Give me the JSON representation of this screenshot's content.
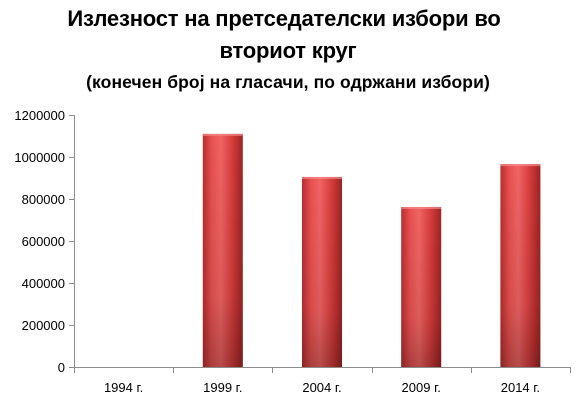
{
  "title_line1": "Излезност на претседателски избори во",
  "title_line2": "вториот круг",
  "subtitle": "(конечен број на гласачи, по одржани избори)",
  "chart_data": {
    "type": "bar",
    "title": "Излезност на претседателски избори во вториот круг",
    "subtitle": "(конечен број на гласачи, по одржани избори)",
    "categories": [
      "1994 г.",
      "1999 г.",
      "2004 г.",
      "2009 г.",
      "2014 г."
    ],
    "values": [
      0,
      1110000,
      905000,
      762000,
      966000
    ],
    "ylim": [
      0,
      1200000
    ],
    "yticks": [
      0,
      200000,
      400000,
      600000,
      800000,
      1000000,
      1200000
    ],
    "grid": false,
    "legend": "none",
    "xlabel": "",
    "ylabel": "",
    "colors": {
      "bar_light": "#ef5a5a",
      "bar_mid": "#d93d3d",
      "bar_dark": "#a52727",
      "axis": "#8c8c8c"
    }
  }
}
